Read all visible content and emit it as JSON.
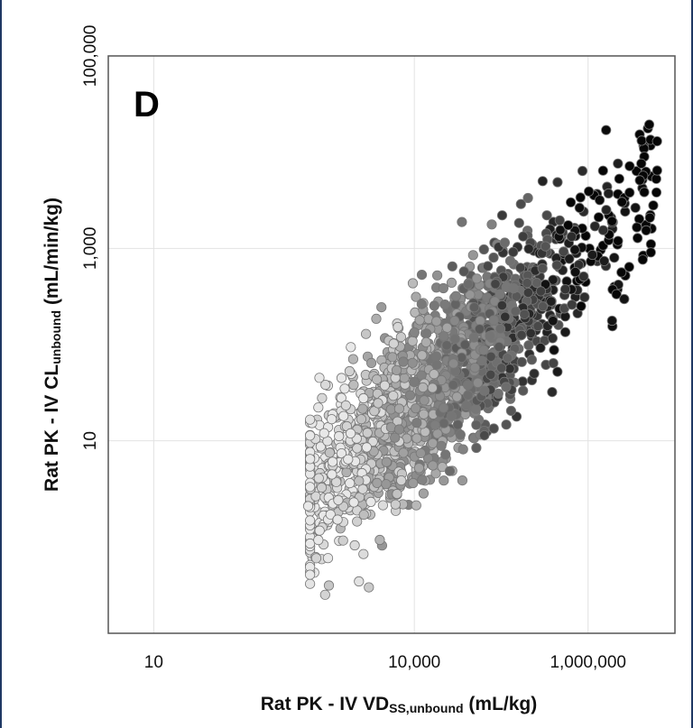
{
  "chart_data": {
    "type": "scatter",
    "panel_label": "D",
    "xlabel": {
      "main": "Rat PK - IV VD",
      "sub": "SS,unbound",
      "unit": " (mL/kg)"
    },
    "ylabel": {
      "main": "Rat PK - IV CL",
      "sub": "unbound",
      "unit": " (mL/min/kg)"
    },
    "x_scale": "log10",
    "y_scale": "log10",
    "xlim": [
      3,
      10000000
    ],
    "ylim": [
      0.1,
      100000
    ],
    "x_ticks": [
      {
        "value": 10,
        "label": "10"
      },
      {
        "value": 10000,
        "label": "10,000"
      },
      {
        "value": 1000000,
        "label": "1,000,000"
      }
    ],
    "y_ticks": [
      {
        "value": 10,
        "label": "10"
      },
      {
        "value": 1000,
        "label": "1,000"
      },
      {
        "value": 100000,
        "label": "100,000"
      }
    ],
    "grid": true,
    "legend": "none",
    "color_encoding": "grayscale, light at low VDss to black at high VDss",
    "colors": {
      "light": "#e6e6e6",
      "dark": "#050505",
      "grid": "#e2e2e2",
      "axis": "#555555"
    },
    "approx_point_count": 1800,
    "density_cloud": {
      "note": "dense cloud of points along a positive log-log trend; approximate distribution",
      "log10_x_range": [
        2.8,
        6.8
      ],
      "slope": 0.78,
      "intercept": -1.73,
      "log10_y_scatter_sd": 0.45
    },
    "notable_points": [
      {
        "x": 3000000,
        "y": 3800
      },
      {
        "x": 300000,
        "y": 5000
      },
      {
        "x": 3000,
        "y": 0.3
      },
      {
        "x": 600,
        "y": 2.1
      },
      {
        "x": 2000000,
        "y": 800
      },
      {
        "x": 1200000,
        "y": 1700
      }
    ]
  }
}
